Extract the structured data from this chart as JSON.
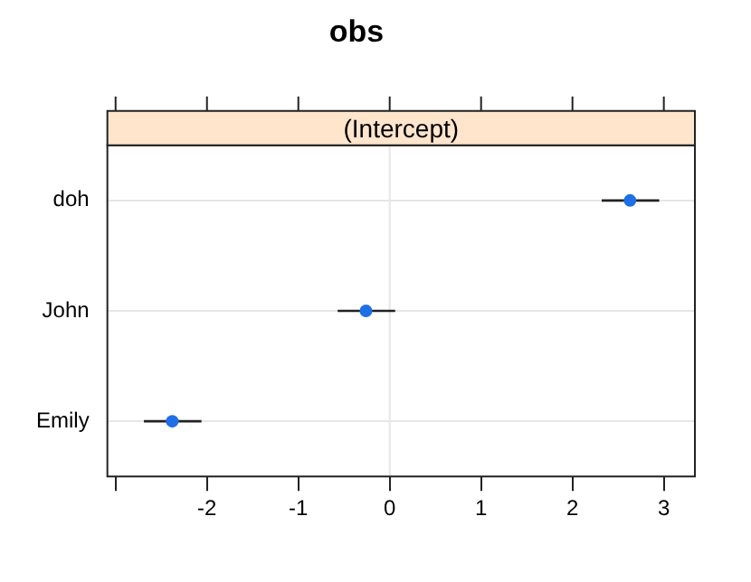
{
  "chart_data": {
    "type": "scatter",
    "title": "obs",
    "subtitle": "(Intercept)",
    "orientation": "horizontal",
    "categories": [
      "doh",
      "John",
      "Emily"
    ],
    "values": [
      2.63,
      -0.26,
      -2.38
    ],
    "errors": [
      [
        2.32,
        2.95
      ],
      [
        -0.57,
        0.06
      ],
      [
        -2.69,
        -2.06
      ]
    ],
    "color": "#1f6fe6",
    "marker": "circle",
    "grid": "y",
    "legend": false,
    "xlim": [
      -3.09,
      3.34
    ],
    "xticks": [
      {
        "value": -3,
        "label": null
      },
      -2,
      -1,
      0,
      1,
      2,
      3
    ],
    "ref_lines": [
      {
        "axis": "x",
        "value": 0,
        "color": "#e6e6e6"
      }
    ]
  }
}
